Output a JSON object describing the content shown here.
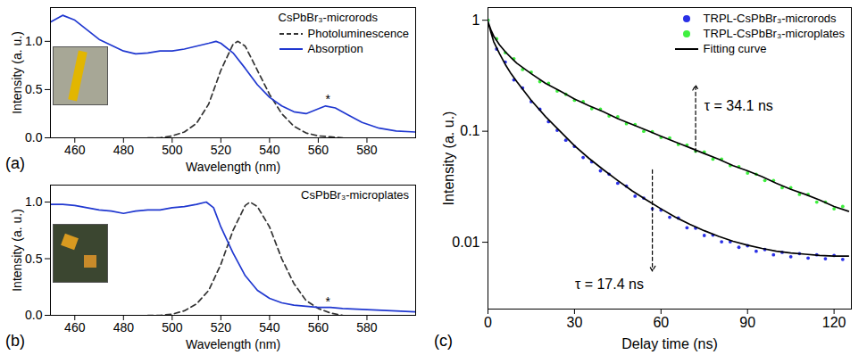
{
  "chart_data": [
    {
      "type": "line",
      "panel": "(a)",
      "title": "CsPbBr₃-microrods",
      "x_label": "Wavelength (nm)",
      "y_label": "Intensity (a. u.)",
      "xlim": [
        450,
        600
      ],
      "xticks": [
        460,
        480,
        500,
        520,
        540,
        560,
        580
      ],
      "ylim": [
        0,
        1.35
      ],
      "yticks": [
        {
          "value": 0,
          "label": "0.0"
        },
        0.5,
        {
          "value": 1,
          "label": "1.0"
        }
      ],
      "legend": "top-right",
      "series": [
        {
          "name": "Photoluminescence",
          "color": "#333333",
          "line_style": "dashed",
          "x": [
            490,
            495,
            500,
            505,
            510,
            515,
            520,
            525,
            527,
            530,
            535,
            540,
            545,
            550,
            555,
            560,
            565,
            570
          ],
          "values": [
            0,
            0,
            0.02,
            0.06,
            0.15,
            0.35,
            0.7,
            0.97,
            1.0,
            0.95,
            0.7,
            0.45,
            0.25,
            0.12,
            0.05,
            0.02,
            0.01,
            0
          ]
        },
        {
          "name": "Absorption",
          "color": "#2038d0",
          "line_style": "solid",
          "x": [
            450,
            455,
            460,
            465,
            470,
            475,
            480,
            485,
            490,
            495,
            500,
            505,
            510,
            515,
            518,
            520,
            525,
            530,
            535,
            540,
            545,
            550,
            555,
            560,
            563,
            567,
            572,
            578,
            585,
            592,
            600
          ],
          "values": [
            1.2,
            1.27,
            1.22,
            1.12,
            1.02,
            0.96,
            0.9,
            0.87,
            0.88,
            0.9,
            0.9,
            0.92,
            0.95,
            0.98,
            1.0,
            0.98,
            0.88,
            0.72,
            0.55,
            0.42,
            0.33,
            0.27,
            0.25,
            0.3,
            0.33,
            0.31,
            0.24,
            0.16,
            0.1,
            0.07,
            0.06
          ]
        }
      ],
      "annotations": [
        {
          "text": "*",
          "x": 564,
          "y": 0.4
        }
      ]
    },
    {
      "type": "line",
      "panel": "(b)",
      "title": "CsPbBr₃-microplates",
      "x_label": "Wavelength (nm)",
      "y_label": "Intensity (a. u.)",
      "xlim": [
        450,
        600
      ],
      "xticks": [
        460,
        480,
        500,
        520,
        540,
        560,
        580
      ],
      "ylim": [
        0,
        1.15
      ],
      "yticks": [
        {
          "value": 0,
          "label": "0.0"
        },
        0.5,
        {
          "value": 1,
          "label": "1.0"
        }
      ],
      "series": [
        {
          "color": "#333333",
          "line_style": "dashed",
          "x": [
            490,
            495,
            500,
            505,
            510,
            515,
            520,
            525,
            530,
            532,
            535,
            540,
            545,
            550,
            555,
            560,
            565,
            570
          ],
          "values": [
            0,
            0,
            0.01,
            0.04,
            0.1,
            0.22,
            0.45,
            0.75,
            0.97,
            1.0,
            0.96,
            0.78,
            0.5,
            0.28,
            0.13,
            0.06,
            0.02,
            0
          ]
        },
        {
          "color": "#2038d0",
          "line_style": "solid",
          "x": [
            450,
            455,
            460,
            465,
            470,
            475,
            480,
            485,
            490,
            495,
            500,
            505,
            510,
            514,
            517,
            520,
            525,
            530,
            535,
            540,
            545,
            550,
            555,
            560,
            565,
            570,
            580,
            590,
            600
          ],
          "values": [
            0.98,
            0.98,
            0.97,
            0.95,
            0.93,
            0.92,
            0.9,
            0.92,
            0.93,
            0.93,
            0.95,
            0.96,
            0.98,
            1.0,
            0.95,
            0.78,
            0.55,
            0.35,
            0.22,
            0.15,
            0.11,
            0.09,
            0.08,
            0.07,
            0.07,
            0.06,
            0.05,
            0.04,
            0.03
          ]
        }
      ],
      "annotations": [
        {
          "text": "*",
          "x": 564,
          "y": 0.12
        }
      ]
    },
    {
      "type": "scatter",
      "panel": "(c)",
      "x_label": "Delay time (ns)",
      "y_label": "Intensity (a. u.)",
      "xlim": [
        0,
        126
      ],
      "xticks": [
        0,
        30,
        60,
        90,
        120
      ],
      "ylim": [
        0.0025,
        1.3
      ],
      "yticks": [
        0.01,
        0.1,
        1
      ],
      "log": "y",
      "legend": "top-right",
      "series": [
        {
          "name": "TRPL-CsPbBr₃-microrods",
          "color": "#2a30e6",
          "type": "scatter",
          "marker": "circle",
          "x": [
            0,
            3,
            6,
            9,
            12,
            15,
            18,
            21,
            24,
            27,
            30,
            33,
            36,
            39,
            42,
            45,
            48,
            51,
            54,
            57,
            60,
            63,
            66,
            69,
            72,
            75,
            78,
            81,
            84,
            87,
            90,
            93,
            96,
            99,
            102,
            105,
            108,
            111,
            114,
            117,
            120,
            123
          ],
          "values": [
            1.0,
            0.55,
            0.42,
            0.29,
            0.245,
            0.185,
            0.158,
            0.122,
            0.102,
            0.083,
            0.073,
            0.058,
            0.053,
            0.044,
            0.041,
            0.034,
            0.032,
            0.026,
            0.025,
            0.02,
            0.0195,
            0.0168,
            0.0165,
            0.0135,
            0.0134,
            0.0115,
            0.0116,
            0.0101,
            0.0101,
            0.009,
            0.0093,
            0.0083,
            0.0086,
            0.0077,
            0.0081,
            0.0074,
            0.0079,
            0.0072,
            0.0077,
            0.0071,
            0.0076,
            0.007
          ]
        },
        {
          "name": "TRPL-CsPbBr₃-microplates",
          "color": "#3ff03f",
          "type": "scatter",
          "marker": "circle",
          "x": [
            0,
            3,
            6,
            9,
            12,
            15,
            18,
            21,
            24,
            27,
            30,
            33,
            36,
            39,
            42,
            45,
            48,
            51,
            54,
            57,
            60,
            63,
            66,
            69,
            72,
            75,
            78,
            81,
            84,
            87,
            90,
            93,
            96,
            99,
            102,
            105,
            108,
            111,
            114,
            117,
            120,
            123
          ],
          "values": [
            1.0,
            0.68,
            0.51,
            0.45,
            0.36,
            0.34,
            0.28,
            0.27,
            0.23,
            0.215,
            0.19,
            0.185,
            0.16,
            0.158,
            0.137,
            0.135,
            0.117,
            0.115,
            0.1,
            0.099,
            0.088,
            0.087,
            0.076,
            0.075,
            0.066,
            0.065,
            0.056,
            0.056,
            0.049,
            0.048,
            0.042,
            0.041,
            0.036,
            0.036,
            0.031,
            0.031,
            0.027,
            0.027,
            0.023,
            0.023,
            0.02,
            0.021
          ]
        },
        {
          "name": "Fitting curve",
          "color": "#000000",
          "type": "line",
          "line_style": "solid",
          "x": [
            0,
            1,
            2,
            4,
            6,
            8,
            10,
            15,
            20,
            25,
            30,
            35,
            40,
            45,
            50,
            55,
            60,
            65,
            70,
            75,
            80,
            85,
            90,
            95,
            100,
            105,
            110,
            115,
            120,
            125,
            null,
            0,
            1,
            2,
            4,
            6,
            8,
            10,
            15,
            20,
            25,
            30,
            35,
            40,
            45,
            50,
            55,
            60,
            65,
            70,
            75,
            80,
            85,
            90,
            95,
            100,
            105,
            110,
            115,
            120,
            125
          ],
          "values": [
            0.97,
            0.82,
            0.72,
            0.6,
            0.52,
            0.46,
            0.41,
            0.33,
            0.27,
            0.23,
            0.195,
            0.17,
            0.15,
            0.13,
            0.115,
            0.102,
            0.09,
            0.08,
            0.071,
            0.063,
            0.056,
            0.049,
            0.044,
            0.039,
            0.034,
            0.03,
            0.027,
            0.024,
            0.021,
            0.019,
            null,
            0.97,
            0.78,
            0.64,
            0.5,
            0.4,
            0.33,
            0.28,
            0.19,
            0.135,
            0.1,
            0.074,
            0.057,
            0.045,
            0.036,
            0.029,
            0.024,
            0.02,
            0.0168,
            0.0145,
            0.0127,
            0.0113,
            0.0102,
            0.0094,
            0.0088,
            0.0083,
            0.008,
            0.0078,
            0.0076,
            0.0075,
            0.0075
          ]
        }
      ],
      "annotations": [
        {
          "text": "τ = 34.1 ns",
          "x": 75,
          "y": 0.17,
          "arrow_from": [
            72,
            0.065
          ],
          "arrow_to": [
            72,
            0.26
          ]
        },
        {
          "text": "τ = 17.4 ns",
          "x": 54,
          "y": 0.0042,
          "arrow_from": [
            57,
            0.045
          ],
          "arrow_to": [
            57,
            0.0055
          ]
        }
      ]
    }
  ]
}
